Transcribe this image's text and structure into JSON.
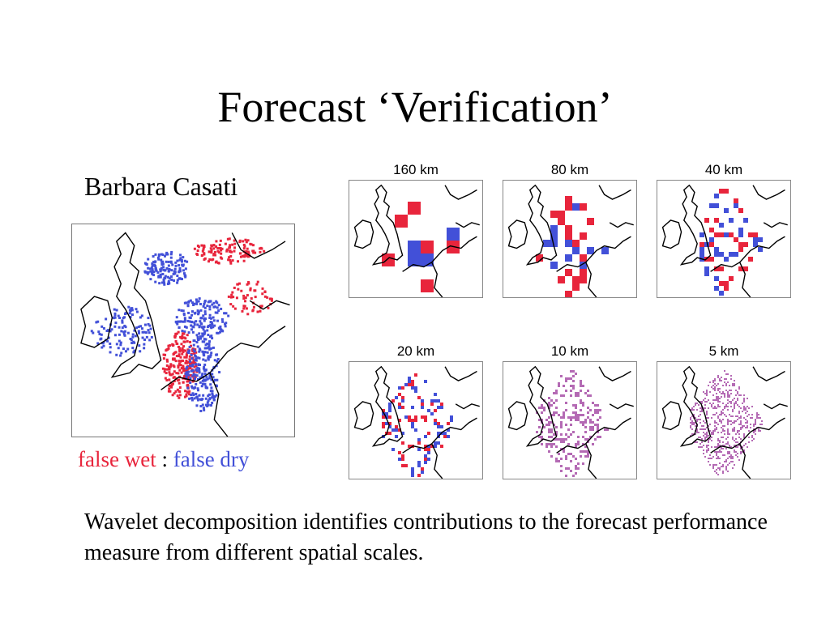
{
  "slide": {
    "title": "Forecast ‘Verification’",
    "author": "Barbara Casati",
    "legend": {
      "false_wet": "false wet",
      "separator": " : ",
      "false_dry": "false dry"
    },
    "caption": "Wavelet decomposition identifies contributions to the forecast performance measure from different spatial scales."
  },
  "colors": {
    "false_wet": "#e8253c",
    "false_dry": "#4250d8",
    "mixed": "#b46ab4",
    "coast": "#000000"
  },
  "panels": [
    {
      "label": "160 km"
    },
    {
      "label": "80 km"
    },
    {
      "label": "40 km"
    },
    {
      "label": "20 km"
    },
    {
      "label": "10 km"
    },
    {
      "label": "5 km"
    }
  ]
}
